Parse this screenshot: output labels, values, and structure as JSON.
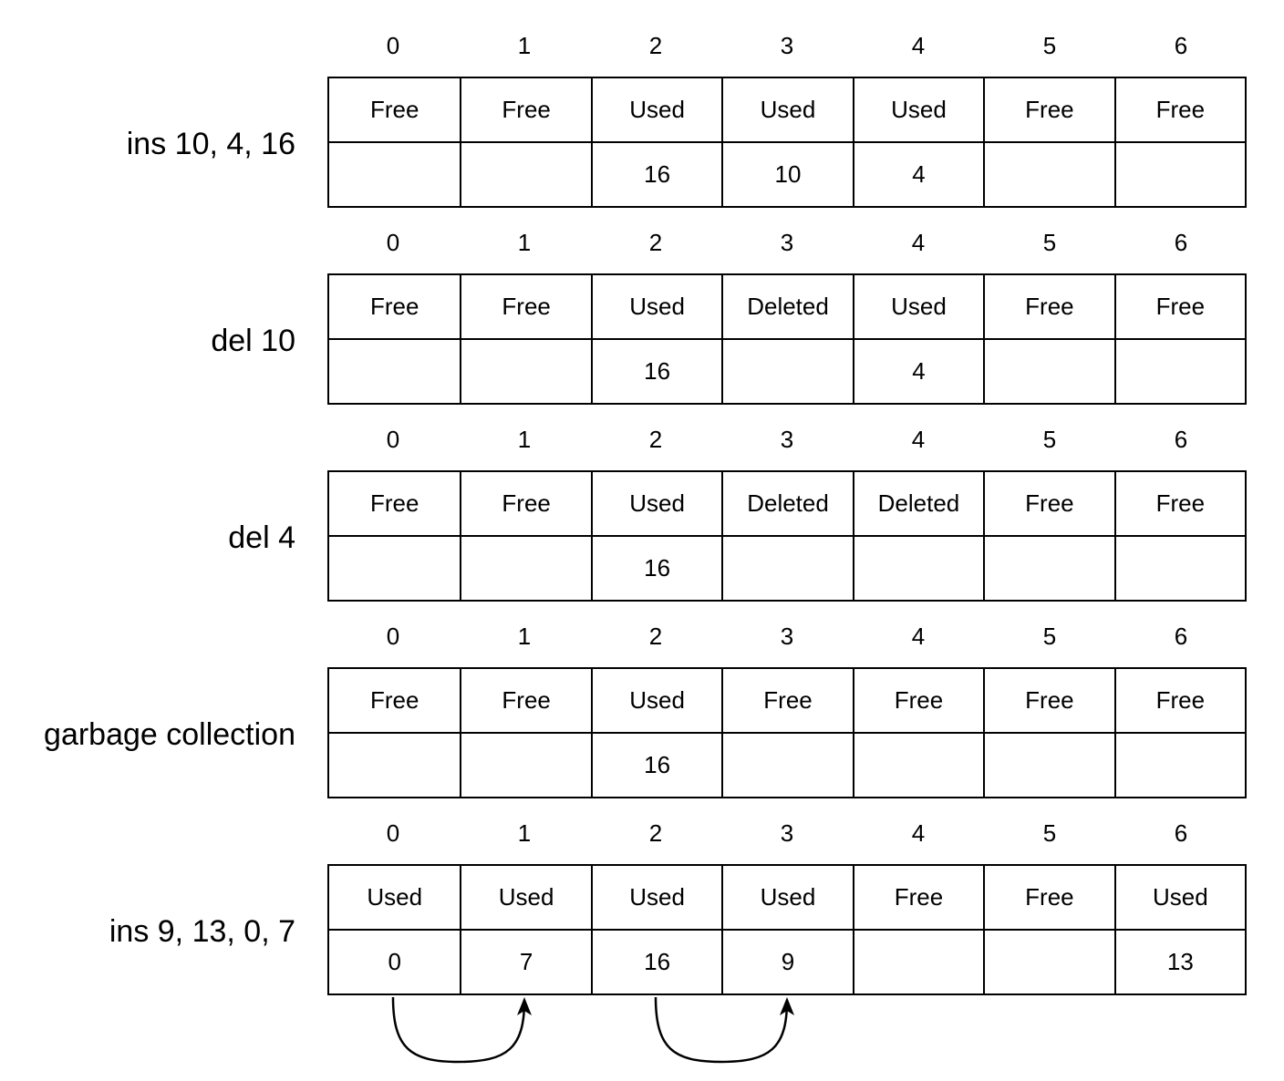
{
  "diagram": {
    "indices": [
      "0",
      "1",
      "2",
      "3",
      "4",
      "5",
      "6"
    ],
    "steps": [
      {
        "label": "ins 10, 4, 16",
        "status": [
          "Free",
          "Free",
          "Used",
          "Used",
          "Used",
          "Free",
          "Free"
        ],
        "values": [
          "",
          "",
          "16",
          "10",
          "4",
          "",
          ""
        ]
      },
      {
        "label": "del 10",
        "status": [
          "Free",
          "Free",
          "Used",
          "Deleted",
          "Used",
          "Free",
          "Free"
        ],
        "values": [
          "",
          "",
          "16",
          "",
          "4",
          "",
          ""
        ]
      },
      {
        "label": "del 4",
        "status": [
          "Free",
          "Free",
          "Used",
          "Deleted",
          "Deleted",
          "Free",
          "Free"
        ],
        "values": [
          "",
          "",
          "16",
          "",
          "",
          "",
          ""
        ]
      },
      {
        "label": "garbage collection",
        "status": [
          "Free",
          "Free",
          "Used",
          "Free",
          "Free",
          "Free",
          "Free"
        ],
        "values": [
          "",
          "",
          "16",
          "",
          "",
          "",
          ""
        ]
      },
      {
        "label": "ins 9, 13, 0, 7",
        "status": [
          "Used",
          "Used",
          "Used",
          "Used",
          "Free",
          "Free",
          "Used"
        ],
        "values": [
          "0",
          "7",
          "16",
          "9",
          "",
          "",
          "13"
        ]
      }
    ],
    "arrows": [
      {
        "from_slot": 0,
        "to_slot": 1
      },
      {
        "from_slot": 2,
        "to_slot": 3
      }
    ]
  }
}
